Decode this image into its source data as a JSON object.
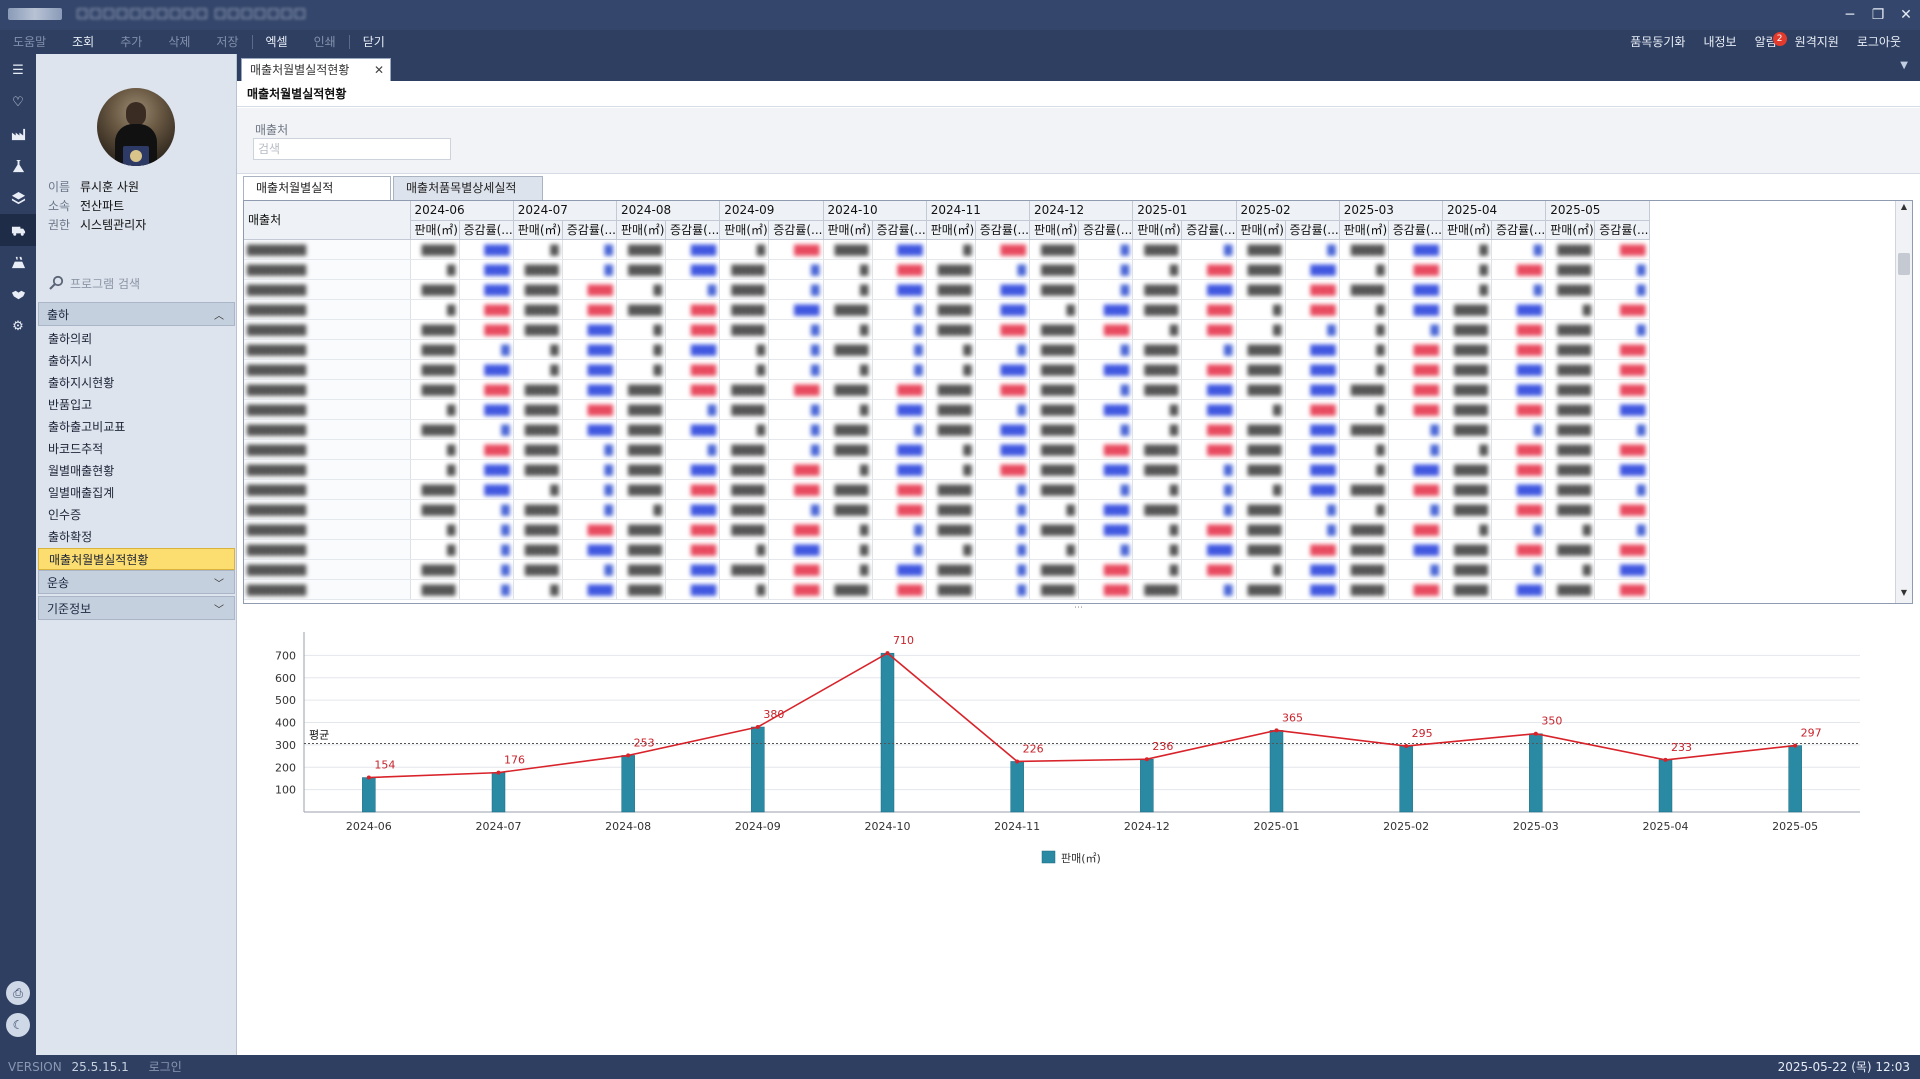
{
  "titlebar": {
    "title": "□□□□□□□□□□ □□□□□□□"
  },
  "menubar": {
    "left": [
      {
        "label": "도움말",
        "dim": true
      },
      {
        "label": "조회",
        "dim": false
      },
      {
        "label": "추가",
        "dim": true
      },
      {
        "label": "삭제",
        "dim": true
      },
      {
        "label": "저장",
        "dim": true
      },
      {
        "label": "엑셀",
        "dim": false
      },
      {
        "label": "인쇄",
        "dim": true
      },
      {
        "label": "닫기",
        "dim": false
      }
    ],
    "right": [
      {
        "label": "품목동기화"
      },
      {
        "label": "내정보"
      },
      {
        "label": "알림",
        "badge": "2"
      },
      {
        "label": "원격지원"
      },
      {
        "label": "로그아웃"
      }
    ]
  },
  "user": {
    "name_label": "이름",
    "name": "류시훈  사원",
    "dept_label": "소속",
    "dept": "전산파트",
    "role_label": "권한",
    "role": "시스템관리자"
  },
  "sidebar": {
    "search_placeholder": "프로그램 검색",
    "group_shipping": "출하",
    "items": [
      "출하의뢰",
      "출하지시",
      "출하지시현황",
      "반품입고",
      "출하출고비교표",
      "바코드추적",
      "월별매출현황",
      "일별매출집계",
      "인수증",
      "출하확정",
      "매출처월별실적현황"
    ],
    "active_index": 10,
    "group_transport": "운송",
    "group_master": "기준정보"
  },
  "tab": {
    "label": "매출처월별실적현황"
  },
  "page": {
    "title": "매출처월별실적현황"
  },
  "filter": {
    "label": "매출처",
    "placeholder": "검색"
  },
  "subtabs": [
    "매출처월별실적",
    "매출처품목별상세실적"
  ],
  "grid": {
    "vendor_header": "매출처",
    "months": [
      "2024-06",
      "2024-07",
      "2024-08",
      "2024-09",
      "2024-10",
      "2024-11",
      "2024-12",
      "2025-01",
      "2025-02",
      "2025-03",
      "2025-04",
      "2025-05"
    ],
    "sub_sales": "판매(㎡)",
    "sub_rate": "증감률(..."
  },
  "chart_data": {
    "type": "bar",
    "title": "",
    "categories": [
      "2024-06",
      "2024-07",
      "2024-08",
      "2024-09",
      "2024-10",
      "2024-11",
      "2024-12",
      "2025-01",
      "2025-02",
      "2025-03",
      "2025-04",
      "2025-05"
    ],
    "series": [
      {
        "name": "판매(㎡)",
        "values": [
          154,
          176,
          253,
          380,
          710,
          226,
          236,
          365,
          295,
          350,
          233,
          297
        ]
      }
    ],
    "line_overlay": true,
    "average": 306,
    "average_label": "평균",
    "ylim": [
      0,
      760
    ],
    "yticks": [
      100,
      200,
      300,
      400,
      500,
      600,
      700
    ],
    "grid": true,
    "legend": "bottom-center",
    "bar_color": "#2b8aa3",
    "line_color": "#d8232a"
  },
  "statusbar": {
    "version_label": "VERSION",
    "version": "25.5.15.1",
    "login": "로그인",
    "datetime": "2025-05-22 (목) 12:03"
  }
}
